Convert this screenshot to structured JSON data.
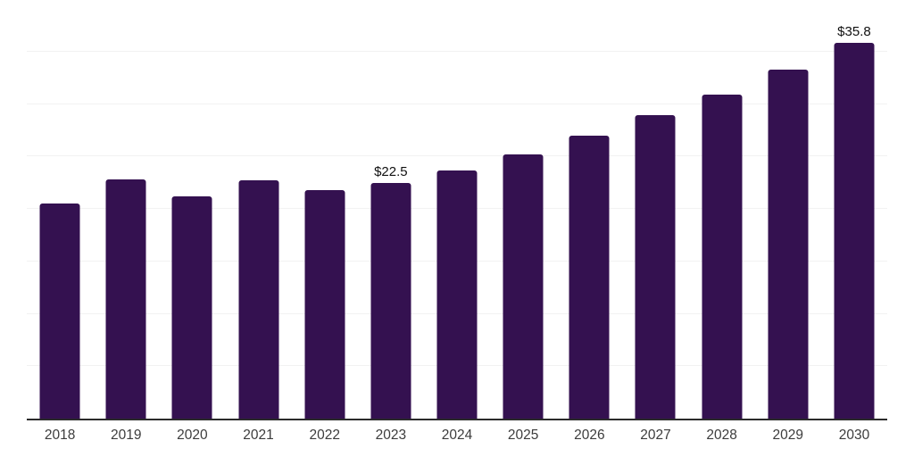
{
  "chart_data": {
    "type": "bar",
    "title": "",
    "xlabel": "",
    "ylabel": "",
    "categories": [
      "2018",
      "2019",
      "2020",
      "2021",
      "2022",
      "2023",
      "2024",
      "2025",
      "2026",
      "2027",
      "2028",
      "2029",
      "2030"
    ],
    "values": [
      20.5,
      22.8,
      21.2,
      22.7,
      21.8,
      22.5,
      23.7,
      25.2,
      27.0,
      28.9,
      30.9,
      33.3,
      35.8
    ],
    "data_labels": {
      "2023": "$22.5",
      "2030": "$35.8"
    },
    "ylim": [
      0,
      40
    ],
    "gridline_step": 5,
    "grid": "on",
    "legend_position": "none",
    "bar_color": "#341150",
    "baseline_color": "#2b2b2b",
    "gridline_color": "#f2f2f2",
    "tick_label_color": "#3c3c3c",
    "value_label_color": "#111111"
  }
}
